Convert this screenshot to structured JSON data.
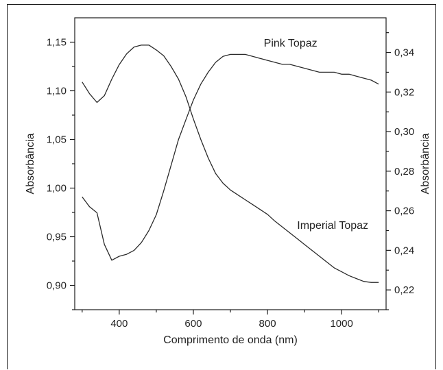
{
  "chart_data": {
    "type": "line",
    "title": "",
    "xlabel": "Comprimento de onda (nm)",
    "ylabel_left": "Absorbância",
    "ylabel_right": "Absorbância",
    "xlim": [
      280,
      1120
    ],
    "ylim_left": [
      0.875,
      1.175
    ],
    "ylim_right": [
      0.21,
      0.3575
    ],
    "x_ticks": [
      400,
      600,
      800,
      1000
    ],
    "x_tick_labels": [
      "400",
      "600",
      "800",
      "1000"
    ],
    "y_left_ticks": [
      0.9,
      0.95,
      1.0,
      1.05,
      1.1,
      1.15
    ],
    "y_left_tick_labels": [
      "0,90",
      "0,95",
      "1,00",
      "1,05",
      "1,10",
      "1,15"
    ],
    "y_right_ticks": [
      0.22,
      0.24,
      0.26,
      0.28,
      0.3,
      0.32,
      0.34
    ],
    "y_right_tick_labels": [
      "0,22",
      "0,24",
      "0,26",
      "0,28",
      "0,30",
      "0,32",
      "0,34"
    ],
    "grid": false,
    "legend": "none",
    "series": [
      {
        "name": "Imperial Topaz",
        "axis": "left",
        "x": [
          300,
          320,
          340,
          360,
          380,
          400,
          420,
          440,
          460,
          480,
          500,
          520,
          540,
          560,
          580,
          600,
          620,
          640,
          660,
          680,
          700,
          720,
          740,
          760,
          780,
          800,
          820,
          840,
          860,
          880,
          900,
          920,
          940,
          960,
          980,
          1000,
          1020,
          1040,
          1060,
          1080,
          1100
        ],
        "values": [
          1.109,
          1.097,
          1.088,
          1.095,
          1.112,
          1.127,
          1.138,
          1.145,
          1.147,
          1.147,
          1.142,
          1.136,
          1.125,
          1.112,
          1.094,
          1.071,
          1.05,
          1.031,
          1.015,
          1.005,
          0.998,
          0.993,
          0.988,
          0.983,
          0.978,
          0.973,
          0.966,
          0.96,
          0.954,
          0.948,
          0.942,
          0.936,
          0.93,
          0.924,
          0.918,
          0.914,
          0.91,
          0.907,
          0.904,
          0.903,
          0.903
        ]
      },
      {
        "name": "Pink Topaz",
        "axis": "right",
        "x": [
          300,
          320,
          340,
          360,
          380,
          400,
          420,
          440,
          460,
          480,
          500,
          520,
          540,
          560,
          580,
          600,
          620,
          640,
          660,
          680,
          700,
          720,
          740,
          760,
          780,
          800,
          820,
          840,
          860,
          880,
          900,
          920,
          940,
          960,
          980,
          1000,
          1020,
          1040,
          1060,
          1080,
          1100
        ],
        "values": [
          0.267,
          0.262,
          0.259,
          0.243,
          0.235,
          0.237,
          0.238,
          0.24,
          0.244,
          0.25,
          0.258,
          0.27,
          0.283,
          0.296,
          0.306,
          0.316,
          0.324,
          0.33,
          0.335,
          0.338,
          0.339,
          0.339,
          0.339,
          0.338,
          0.337,
          0.336,
          0.335,
          0.334,
          0.334,
          0.333,
          0.332,
          0.331,
          0.33,
          0.33,
          0.33,
          0.329,
          0.329,
          0.328,
          0.327,
          0.326,
          0.324
        ]
      }
    ],
    "annotations": [
      {
        "text": "Pink Topaz",
        "series": "Pink Topaz",
        "x": 790,
        "y": 0.343
      },
      {
        "text": "Imperial Topaz",
        "series": "Imperial Topaz",
        "x": 880,
        "y": 0.958
      }
    ]
  }
}
